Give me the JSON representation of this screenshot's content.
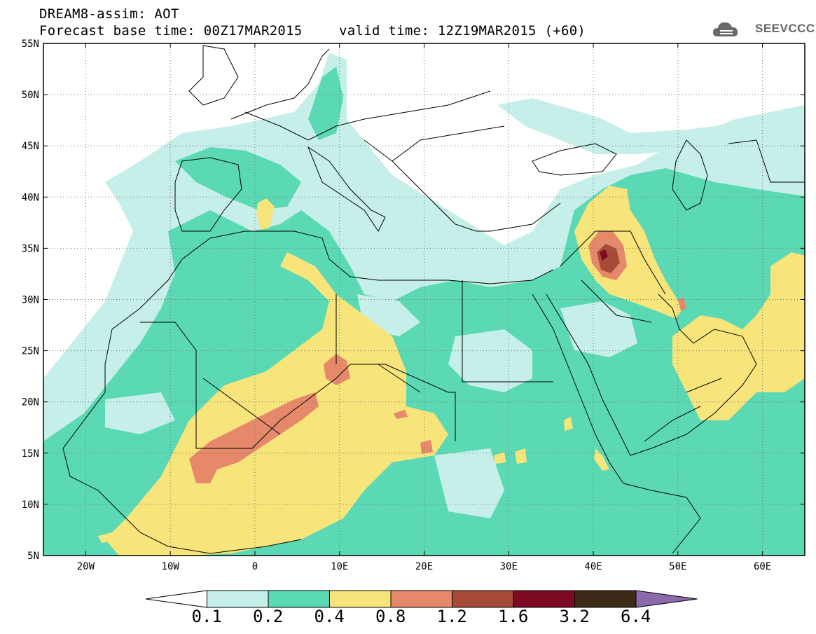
{
  "header": {
    "line1": "DREAM8-assim: AOT",
    "line2": "Forecast base time: 00Z17MAR2015",
    "line3": "valid time: 12Z19MAR2015 (+60)"
  },
  "logo": {
    "text": "SEEVCCC",
    "icon": "cloud-icon",
    "color": "#666666"
  },
  "map": {
    "lon_range": [
      -25,
      65
    ],
    "lat_range": [
      5,
      55
    ],
    "lat_ticks": [
      "55N",
      "50N",
      "45N",
      "40N",
      "35N",
      "30N",
      "25N",
      "20N",
      "15N",
      "10N",
      "5N"
    ],
    "lon_ticks": [
      "20W",
      "10W",
      "0",
      "10E",
      "20E",
      "30E",
      "40E",
      "50E",
      "60E"
    ],
    "grid": "dotted"
  },
  "colorbar": {
    "labels": [
      "0.1",
      "0.2",
      "0.4",
      "0.8",
      "1.2",
      "1.6",
      "3.2",
      "6.4"
    ],
    "colors": [
      "#ffffff",
      "#c5efe8",
      "#5ad9b4",
      "#f7e47a",
      "#e5896a",
      "#a64a3a",
      "#7b0a22",
      "#3e2a19",
      "#8a6aa8"
    ]
  },
  "field_colors": {
    "c1": "#c5efe8",
    "c2": "#5ad9b4",
    "c3": "#f7e47a",
    "c4": "#e5896a",
    "c5": "#a64a3a",
    "c6": "#7b0a22"
  }
}
